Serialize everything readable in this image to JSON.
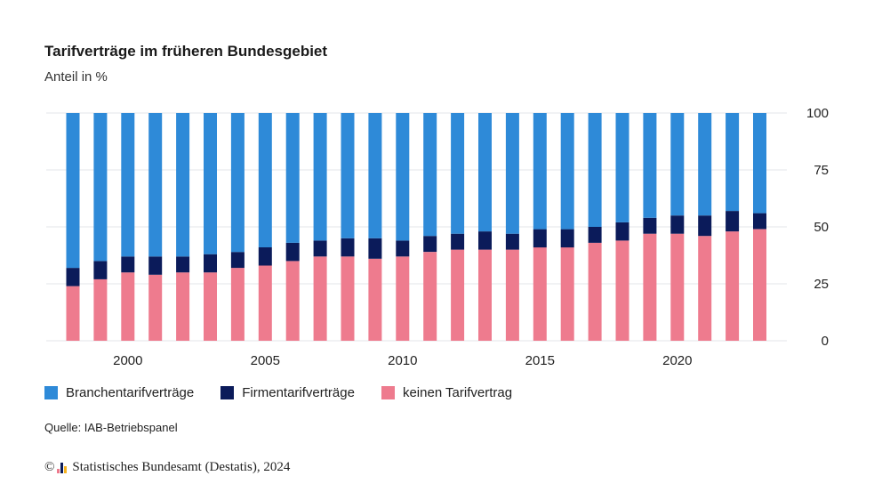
{
  "title": "Tarifverträge im früheren Bundesgebiet",
  "subtitle": "Anteil in %",
  "source": "Quelle: IAB-Betriebspanel",
  "copyright": {
    "symbol": "©",
    "text": "Statistisches Bundesamt (Destatis), 2024",
    "logo_icon": "destatis-bar-logo-icon"
  },
  "colors": {
    "branchen": "#2e8ad8",
    "firmen": "#0b1b5a",
    "keinen": "#ee7b8e",
    "grid": "#e3e6ea",
    "text": "#222222"
  },
  "chart_data": {
    "type": "bar",
    "stacked": true,
    "x": [
      1998,
      1999,
      2000,
      2001,
      2002,
      2003,
      2004,
      2005,
      2006,
      2007,
      2008,
      2009,
      2010,
      2011,
      2012,
      2013,
      2014,
      2015,
      2016,
      2017,
      2018,
      2019,
      2020,
      2021,
      2022,
      2023
    ],
    "x_tick_labels": [
      "2000",
      "2005",
      "2010",
      "2015",
      "2020"
    ],
    "x_tick_values": [
      2000,
      2005,
      2010,
      2015,
      2020
    ],
    "series": [
      {
        "name": "keinen Tarifvertrag",
        "color": "#ee7b8e",
        "values": [
          24,
          27,
          30,
          29,
          30,
          30,
          32,
          33,
          35,
          37,
          37,
          36,
          37,
          39,
          40,
          40,
          40,
          41,
          41,
          43,
          44,
          47,
          47,
          46,
          48,
          49
        ]
      },
      {
        "name": "Firmentarifverträge",
        "color": "#0b1b5a",
        "values": [
          8,
          8,
          7,
          8,
          7,
          8,
          7,
          8,
          8,
          7,
          8,
          9,
          7,
          7,
          7,
          8,
          7,
          8,
          8,
          7,
          8,
          7,
          8,
          9,
          9,
          7
        ]
      },
      {
        "name": "Branchentarifverträge",
        "color": "#2e8ad8",
        "values": [
          68,
          65,
          63,
          63,
          63,
          62,
          61,
          59,
          57,
          56,
          55,
          55,
          56,
          54,
          53,
          52,
          53,
          51,
          51,
          50,
          48,
          46,
          45,
          45,
          43,
          44
        ]
      }
    ],
    "legend": [
      "Branchentarifverträge",
      "Firmentarifverträge",
      "keinen Tarifvertrag"
    ],
    "y_ticks": [
      "0",
      "25",
      "50",
      "75",
      "100"
    ],
    "ylim": [
      0,
      100
    ],
    "y_axis_position": "right",
    "grid": true,
    "legend_position": "bottom-left"
  }
}
